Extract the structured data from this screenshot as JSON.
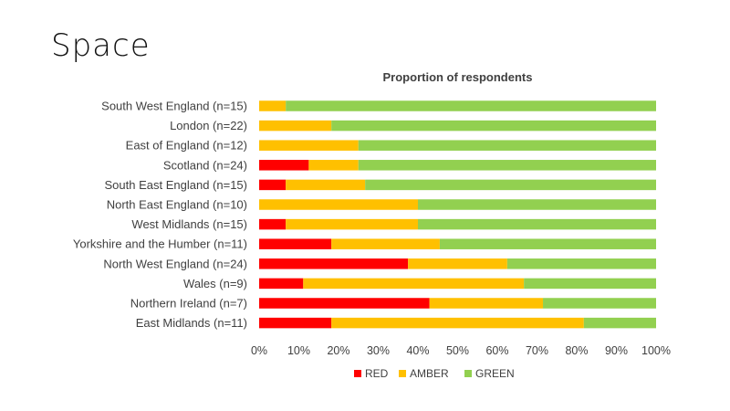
{
  "slide": {
    "title": "Space"
  },
  "chart_data": {
    "type": "bar",
    "orientation": "horizontal",
    "stacked": true,
    "normalized": true,
    "title": "Proportion of respondents",
    "categories": [
      "South West England (n=15)",
      "London (n=22)",
      "East of England (n=12)",
      "Scotland (n=24)",
      "South East England (n=15)",
      "North East England (n=10)",
      "West Midlands (n=15)",
      "Yorkshire and the Humber (n=11)",
      "North West England (n=24)",
      "Wales (n=9)",
      "Northern Ireland (n=7)",
      "East Midlands (n=11)"
    ],
    "series": [
      {
        "name": "RED",
        "color": "#ff0000",
        "values": [
          0,
          0,
          0,
          12.5,
          6.7,
          0,
          6.7,
          18.2,
          37.5,
          11.1,
          42.9,
          18.2
        ]
      },
      {
        "name": "AMBER",
        "color": "#ffc000",
        "values": [
          6.7,
          18.2,
          25,
          12.5,
          20,
          40,
          33.3,
          27.3,
          25,
          55.6,
          28.6,
          63.6
        ]
      },
      {
        "name": "GREEN",
        "color": "#92d050",
        "values": [
          93.3,
          81.8,
          75,
          75,
          73.3,
          60,
          60,
          54.5,
          37.5,
          33.3,
          28.5,
          18.2
        ]
      }
    ],
    "x_ticks": [
      "0%",
      "10%",
      "20%",
      "30%",
      "40%",
      "50%",
      "60%",
      "70%",
      "80%",
      "90%",
      "100%"
    ],
    "xlim": [
      0,
      100
    ],
    "grid": false,
    "legend_position": "bottom"
  }
}
